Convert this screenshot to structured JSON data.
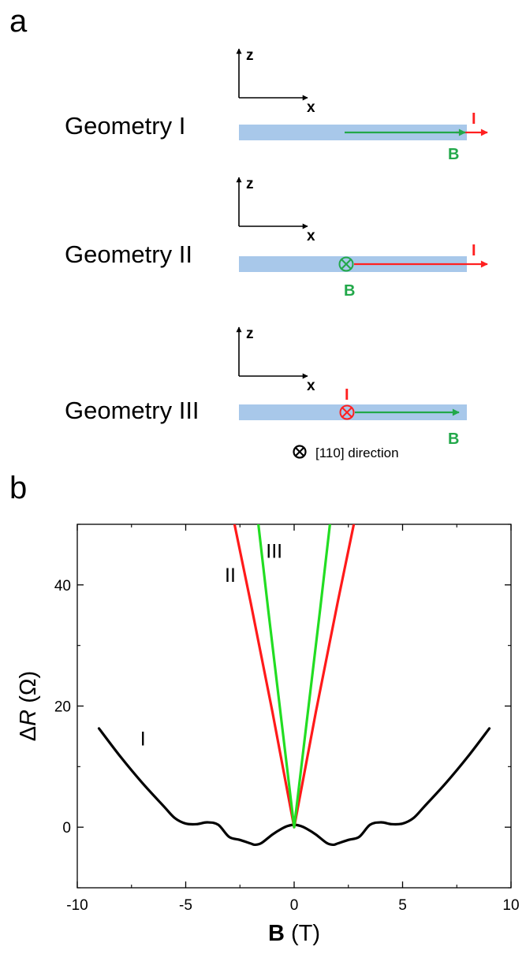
{
  "panel_a": {
    "letter": "a",
    "colors": {
      "bar": "#a8c8ea",
      "current": "#ff2020",
      "field": "#22a84a",
      "axis": "#000000"
    },
    "geometries": [
      {
        "label": "Geometry I",
        "axis_z": "z",
        "axis_x": "x",
        "current_label": "I",
        "field_label": "B"
      },
      {
        "label": "Geometry II",
        "axis_z": "z",
        "axis_x": "x",
        "current_label": "I",
        "field_label": "B"
      },
      {
        "label": "Geometry III",
        "axis_z": "z",
        "axis_x": "x",
        "current_label": "I",
        "field_label": "B"
      }
    ],
    "legend": {
      "symbol": "⊗",
      "text": "[110] direction"
    }
  },
  "panel_b": {
    "letter": "b",
    "x_title_bold": "B",
    "x_title_rest": " (T)",
    "y_title_prefix": "Δ",
    "y_title_italic": "R",
    "y_title_rest": " (Ω)"
  },
  "chart_data": {
    "type": "line",
    "title": "",
    "xlabel": "B (T)",
    "ylabel": "ΔR (Ω)",
    "xlim": [
      -10,
      10
    ],
    "ylim": [
      -10,
      50
    ],
    "xticks": [
      -10,
      -5,
      0,
      5,
      10
    ],
    "yticks": [
      0,
      20,
      40
    ],
    "grid": false,
    "series": [
      {
        "name": "I",
        "color": "#000000",
        "x": [
          -9,
          -8,
          -7,
          -6,
          -5.5,
          -5,
          -4.5,
          -4,
          -3.5,
          -3,
          -2.5,
          -2,
          -1.8,
          -1.5,
          -1,
          -0.6,
          -0.3,
          0,
          0.3,
          0.6,
          1,
          1.5,
          1.8,
          2,
          2.5,
          3,
          3.5,
          4,
          4.5,
          5,
          5.5,
          6,
          7,
          8,
          9
        ],
        "y": [
          16.3,
          11.6,
          7.3,
          3.4,
          1.5,
          0.6,
          0.5,
          0.8,
          0.4,
          -1.6,
          -2.1,
          -2.7,
          -2.9,
          -2.6,
          -1.2,
          -0.3,
          0.2,
          0.4,
          0.2,
          -0.3,
          -1.2,
          -2.6,
          -2.9,
          -2.7,
          -2.1,
          -1.6,
          0.4,
          0.8,
          0.5,
          0.6,
          1.5,
          3.4,
          7.3,
          11.6,
          16.3
        ]
      },
      {
        "name": "II",
        "color": "#ff1a1a",
        "x": [
          -2.75,
          -2,
          -1.5,
          -1,
          -0.5,
          0,
          0.5,
          1,
          1.5,
          2,
          2.75
        ],
        "y": [
          50,
          37,
          28,
          19,
          9.5,
          0,
          9.5,
          19,
          28,
          37,
          50
        ]
      },
      {
        "name": "III",
        "color": "#22dd22",
        "x": [
          -1.65,
          -1.2,
          -0.8,
          -0.4,
          0,
          0.4,
          0.8,
          1.2,
          1.65
        ],
        "y": [
          50,
          36,
          24,
          12,
          0,
          12,
          24,
          36,
          50
        ]
      }
    ]
  }
}
